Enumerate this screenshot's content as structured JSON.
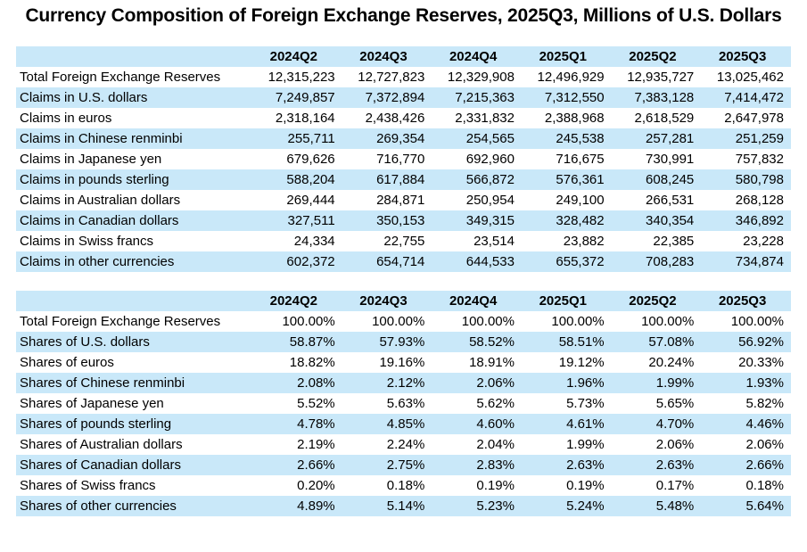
{
  "title": "Currency Composition of Foreign Exchange Reserves, 2025Q3, Millions of U.S. Dollars",
  "colors": {
    "band": "#c9e8f9",
    "text": "#000000",
    "background": "#ffffff"
  },
  "chart_data": [
    {
      "type": "table",
      "name": "levels",
      "columns": [
        "",
        "2024Q2",
        "2024Q3",
        "2024Q4",
        "2025Q1",
        "2025Q2",
        "2025Q3"
      ],
      "rows": [
        {
          "label": "Total Foreign Exchange Reserves",
          "values": [
            "12,315,223",
            "12,727,823",
            "12,329,908",
            "12,496,929",
            "12,935,727",
            "13,025,462"
          ]
        },
        {
          "label": "Claims in U.S. dollars",
          "values": [
            "7,249,857",
            "7,372,894",
            "7,215,363",
            "7,312,550",
            "7,383,128",
            "7,414,472"
          ]
        },
        {
          "label": "Claims in euros",
          "values": [
            "2,318,164",
            "2,438,426",
            "2,331,832",
            "2,388,968",
            "2,618,529",
            "2,647,978"
          ]
        },
        {
          "label": "Claims in Chinese renminbi",
          "values": [
            "255,711",
            "269,354",
            "254,565",
            "245,538",
            "257,281",
            "251,259"
          ]
        },
        {
          "label": "Claims in Japanese yen",
          "values": [
            "679,626",
            "716,770",
            "692,960",
            "716,675",
            "730,991",
            "757,832"
          ]
        },
        {
          "label": "Claims in pounds sterling",
          "values": [
            "588,204",
            "617,884",
            "566,872",
            "576,361",
            "608,245",
            "580,798"
          ]
        },
        {
          "label": "Claims in Australian dollars",
          "values": [
            "269,444",
            "284,871",
            "250,954",
            "249,100",
            "266,531",
            "268,128"
          ]
        },
        {
          "label": "Claims in Canadian dollars",
          "values": [
            "327,511",
            "350,153",
            "349,315",
            "328,482",
            "340,354",
            "346,892"
          ]
        },
        {
          "label": "Claims in Swiss francs",
          "values": [
            "24,334",
            "22,755",
            "23,514",
            "23,882",
            "22,385",
            "23,228"
          ]
        },
        {
          "label": "Claims in other currencies",
          "values": [
            "602,372",
            "654,714",
            "644,533",
            "655,372",
            "708,283",
            "734,874"
          ]
        }
      ]
    },
    {
      "type": "table",
      "name": "shares",
      "columns": [
        "",
        "2024Q2",
        "2024Q3",
        "2024Q4",
        "2025Q1",
        "2025Q2",
        "2025Q3"
      ],
      "rows": [
        {
          "label": "Total Foreign Exchange Reserves",
          "values": [
            "100.00%",
            "100.00%",
            "100.00%",
            "100.00%",
            "100.00%",
            "100.00%"
          ]
        },
        {
          "label": "Shares of U.S. dollars",
          "values": [
            "58.87%",
            "57.93%",
            "58.52%",
            "58.51%",
            "57.08%",
            "56.92%"
          ]
        },
        {
          "label": "Shares of euros",
          "values": [
            "18.82%",
            "19.16%",
            "18.91%",
            "19.12%",
            "20.24%",
            "20.33%"
          ]
        },
        {
          "label": "Shares of Chinese renminbi",
          "values": [
            "2.08%",
            "2.12%",
            "2.06%",
            "1.96%",
            "1.99%",
            "1.93%"
          ]
        },
        {
          "label": "Shares of Japanese yen",
          "values": [
            "5.52%",
            "5.63%",
            "5.62%",
            "5.73%",
            "5.65%",
            "5.82%"
          ]
        },
        {
          "label": "Shares of pounds sterling",
          "values": [
            "4.78%",
            "4.85%",
            "4.60%",
            "4.61%",
            "4.70%",
            "4.46%"
          ]
        },
        {
          "label": "Shares of Australian dollars",
          "values": [
            "2.19%",
            "2.24%",
            "2.04%",
            "1.99%",
            "2.06%",
            "2.06%"
          ]
        },
        {
          "label": "Shares of Canadian dollars",
          "values": [
            "2.66%",
            "2.75%",
            "2.83%",
            "2.63%",
            "2.63%",
            "2.66%"
          ]
        },
        {
          "label": "Shares of Swiss francs",
          "values": [
            "0.20%",
            "0.18%",
            "0.19%",
            "0.19%",
            "0.17%",
            "0.18%"
          ]
        },
        {
          "label": "Shares of other currencies",
          "values": [
            "4.89%",
            "5.14%",
            "5.23%",
            "5.24%",
            "5.48%",
            "5.64%"
          ]
        }
      ]
    }
  ]
}
